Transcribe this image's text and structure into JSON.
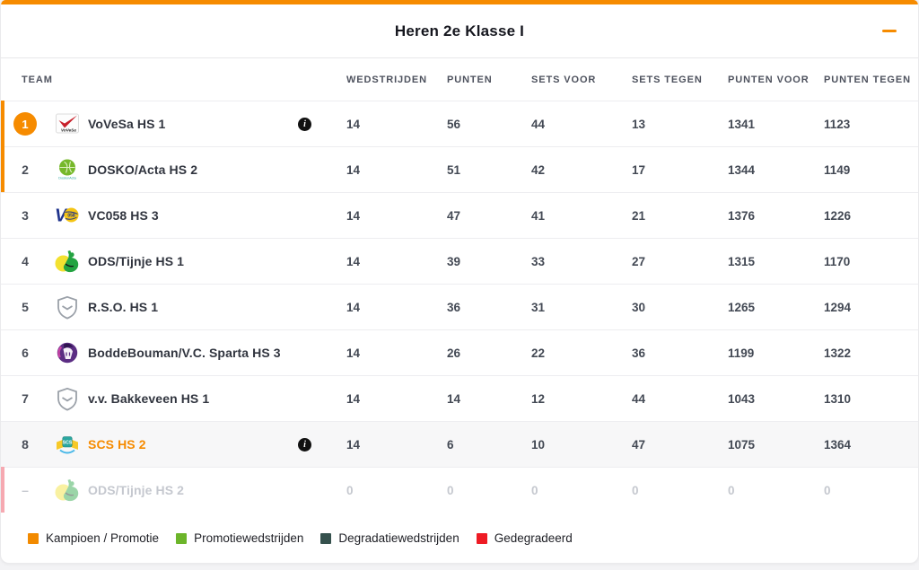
{
  "header": {
    "title": "Heren 2e Klasse I"
  },
  "icons": {
    "collapse": "minus-icon",
    "info_glyph": "i"
  },
  "colors": {
    "accent": "#f68b00",
    "own_row_bg": "#f7f7f8",
    "stripe_orange": "#f68b00",
    "stripe_pink": "#f6a9b1"
  },
  "columns": [
    "TEAM",
    "WEDSTRIJDEN",
    "PUNTEN",
    "SETS VOOR",
    "SETS TEGEN",
    "PUNTEN VOOR",
    "PUNTEN TEGEN"
  ],
  "rows": [
    {
      "position": "1",
      "badge": true,
      "team": "VoVeSa HS 1",
      "logo": "vovesa",
      "logo_text": "VoVeSa",
      "info": true,
      "stripe": "orange",
      "own": false,
      "inactive": false,
      "values": [
        "14",
        "56",
        "44",
        "13",
        "1341",
        "1123"
      ]
    },
    {
      "position": "2",
      "badge": false,
      "team": "DOSKO/Acta HS 2",
      "logo": "dosko",
      "logo_text": "Dosko/Acta",
      "info": false,
      "stripe": "orange",
      "own": false,
      "inactive": false,
      "values": [
        "14",
        "51",
        "42",
        "17",
        "1344",
        "1149"
      ]
    },
    {
      "position": "3",
      "badge": false,
      "team": "VC058 HS 3",
      "logo": "vc058",
      "logo_text": "058",
      "info": false,
      "stripe": null,
      "own": false,
      "inactive": false,
      "values": [
        "14",
        "47",
        "41",
        "21",
        "1376",
        "1226"
      ]
    },
    {
      "position": "4",
      "badge": false,
      "team": "ODS/Tijnje HS 1",
      "logo": "ods",
      "logo_text": "",
      "info": false,
      "stripe": null,
      "own": false,
      "inactive": false,
      "values": [
        "14",
        "39",
        "33",
        "27",
        "1315",
        "1170"
      ]
    },
    {
      "position": "5",
      "badge": false,
      "team": "R.S.O. HS 1",
      "logo": "shield",
      "logo_text": "",
      "info": false,
      "stripe": null,
      "own": false,
      "inactive": false,
      "values": [
        "14",
        "36",
        "31",
        "30",
        "1265",
        "1294"
      ]
    },
    {
      "position": "6",
      "badge": false,
      "team": "BoddeBouman/V.C. Sparta HS 3",
      "logo": "sparta",
      "logo_text": "",
      "info": false,
      "stripe": null,
      "own": false,
      "inactive": false,
      "values": [
        "14",
        "26",
        "22",
        "36",
        "1199",
        "1322"
      ]
    },
    {
      "position": "7",
      "badge": false,
      "team": "v.v. Bakkeveen HS 1",
      "logo": "shield",
      "logo_text": "",
      "info": false,
      "stripe": null,
      "own": false,
      "inactive": false,
      "values": [
        "14",
        "14",
        "12",
        "44",
        "1043",
        "1310"
      ]
    },
    {
      "position": "8",
      "badge": false,
      "team": "SCS HS 2",
      "logo": "scs",
      "logo_text": "SCS",
      "info": true,
      "stripe": null,
      "own": true,
      "inactive": false,
      "values": [
        "14",
        "6",
        "10",
        "47",
        "1075",
        "1364"
      ]
    },
    {
      "position": "–",
      "badge": false,
      "team": "ODS/Tijnje HS 2",
      "logo": "ods",
      "logo_text": "",
      "info": false,
      "stripe": "pink",
      "own": false,
      "inactive": true,
      "values": [
        "0",
        "0",
        "0",
        "0",
        "0",
        "0"
      ]
    }
  ],
  "legend": [
    {
      "label": "Kampioen / Promotie",
      "color": "#f28a00"
    },
    {
      "label": "Promotiewedstrijden",
      "color": "#6cb52a"
    },
    {
      "label": "Degradatiewedstrijden",
      "color": "#35514d"
    },
    {
      "label": "Gedegradeerd",
      "color": "#ee1b24"
    }
  ]
}
